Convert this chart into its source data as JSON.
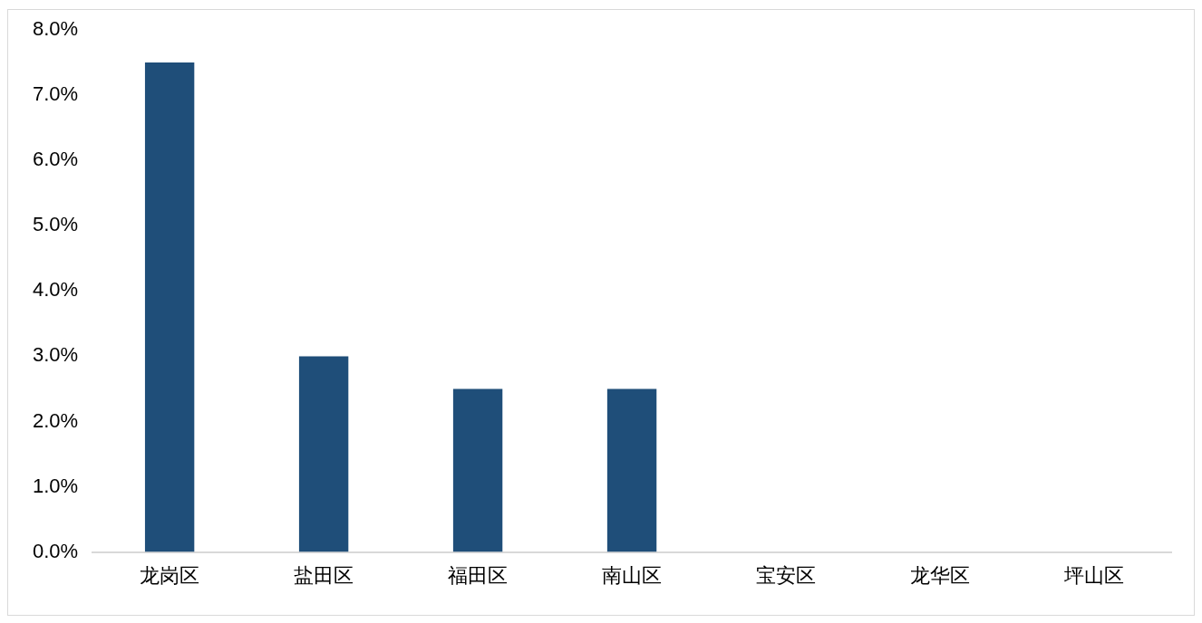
{
  "chart_data": {
    "type": "bar",
    "categories": [
      "龙岗区",
      "盐田区",
      "福田区",
      "南山区",
      "宝安区",
      "龙华区",
      "坪山区"
    ],
    "values": [
      7.5,
      3.0,
      2.5,
      2.5,
      0,
      0,
      0
    ],
    "color": "#1f4e79",
    "ylim": [
      0,
      8
    ],
    "yticks": [
      {
        "value": 0,
        "label": "0.0%"
      },
      {
        "value": 1,
        "label": "1.0%"
      },
      {
        "value": 2,
        "label": "2.0%"
      },
      {
        "value": 3,
        "label": "3.0%"
      },
      {
        "value": 4,
        "label": "4.0%"
      },
      {
        "value": 5,
        "label": "5.0%"
      },
      {
        "value": 6,
        "label": "6.0%"
      },
      {
        "value": 7,
        "label": "7.0%"
      },
      {
        "value": 8,
        "label": "8.0%"
      }
    ],
    "grid": false,
    "legend": false
  }
}
